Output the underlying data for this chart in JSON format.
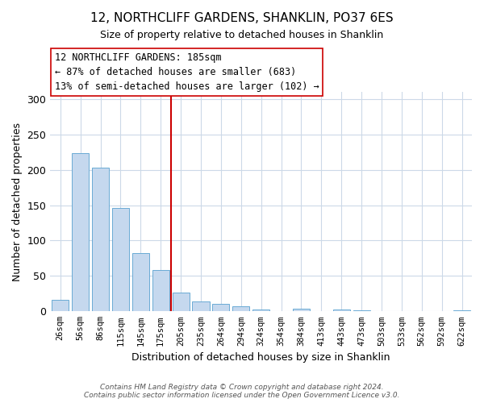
{
  "title": "12, NORTHCLIFF GARDENS, SHANKLIN, PO37 6ES",
  "subtitle": "Size of property relative to detached houses in Shanklin",
  "xlabel": "Distribution of detached houses by size in Shanklin",
  "ylabel": "Number of detached properties",
  "bar_labels": [
    "26sqm",
    "56sqm",
    "86sqm",
    "115sqm",
    "145sqm",
    "175sqm",
    "205sqm",
    "235sqm",
    "264sqm",
    "294sqm",
    "324sqm",
    "354sqm",
    "384sqm",
    "413sqm",
    "443sqm",
    "473sqm",
    "503sqm",
    "533sqm",
    "562sqm",
    "592sqm",
    "622sqm"
  ],
  "bar_values": [
    16,
    224,
    203,
    146,
    82,
    58,
    26,
    14,
    11,
    7,
    3,
    0,
    4,
    0,
    3,
    1,
    0,
    0,
    0,
    0,
    1
  ],
  "bar_color": "#c5d8ee",
  "bar_edge_color": "#6aaad4",
  "vline_x": 5.5,
  "vline_color": "#cc0000",
  "annotation_line1": "12 NORTHCLIFF GARDENS: 185sqm",
  "annotation_line2": "← 87% of detached houses are smaller (683)",
  "annotation_line3": "13% of semi-detached houses are larger (102) →",
  "annotation_box_color": "#ffffff",
  "annotation_box_edge": "#cc0000",
  "ylim": [
    0,
    310
  ],
  "yticks": [
    0,
    50,
    100,
    150,
    200,
    250,
    300
  ],
  "footer_line1": "Contains HM Land Registry data © Crown copyright and database right 2024.",
  "footer_line2": "Contains public sector information licensed under the Open Government Licence v3.0.",
  "bg_color": "#ffffff",
  "grid_color": "#ccd9e8"
}
